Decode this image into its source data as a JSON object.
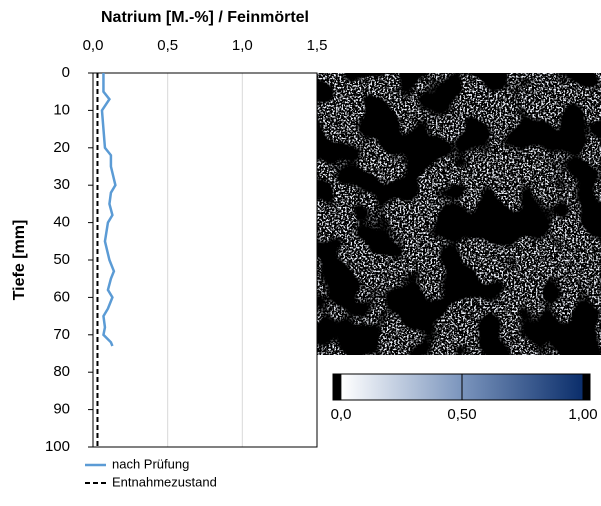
{
  "chart_data": {
    "type": "line",
    "title": "Natrium [M.-%] / Feinmörtel",
    "y_label": "Tiefe [mm]",
    "xlim": [
      0,
      1.5
    ],
    "xticks": [
      {
        "value": 0,
        "label": "0,0"
      },
      {
        "value": 0.5,
        "label": "0,5"
      },
      {
        "value": 1,
        "label": "1,0"
      },
      {
        "value": 1.5,
        "label": "1,5"
      }
    ],
    "ylim": [
      0,
      100
    ],
    "yticks": [
      0,
      10,
      20,
      30,
      40,
      50,
      60,
      70,
      80,
      90,
      100
    ],
    "y_inverted": true,
    "x_axis_position": "top",
    "grid": true,
    "legend": "bottom-left",
    "series": [
      {
        "name": "nach Prüfung",
        "color": "#5b9bd5",
        "linestyle": "solid",
        "y": [
          0,
          5,
          7,
          10,
          15,
          20,
          22,
          25,
          30,
          32,
          35,
          38,
          40,
          45,
          50,
          53,
          55,
          58,
          60,
          63,
          65,
          68,
          70,
          72,
          73
        ],
        "values": [
          0.07,
          0.07,
          0.11,
          0.06,
          0.07,
          0.08,
          0.12,
          0.12,
          0.15,
          0.12,
          0.11,
          0.13,
          0.1,
          0.08,
          0.11,
          0.14,
          0.12,
          0.1,
          0.13,
          0.1,
          0.07,
          0.08,
          0.07,
          0.12,
          0.13
        ]
      },
      {
        "name": "Entnahmezustand",
        "color": "#000000",
        "linestyle": "dashed",
        "y": [
          0,
          100
        ],
        "values": [
          0.03,
          0.03
        ]
      }
    ],
    "colorbar": {
      "lim": [
        0,
        1
      ],
      "ticks": [
        {
          "value": 0,
          "label": "0,0"
        },
        {
          "value": 0.5,
          "label": "0,50"
        },
        {
          "value": 1,
          "label": "1,00"
        }
      ]
    }
  }
}
